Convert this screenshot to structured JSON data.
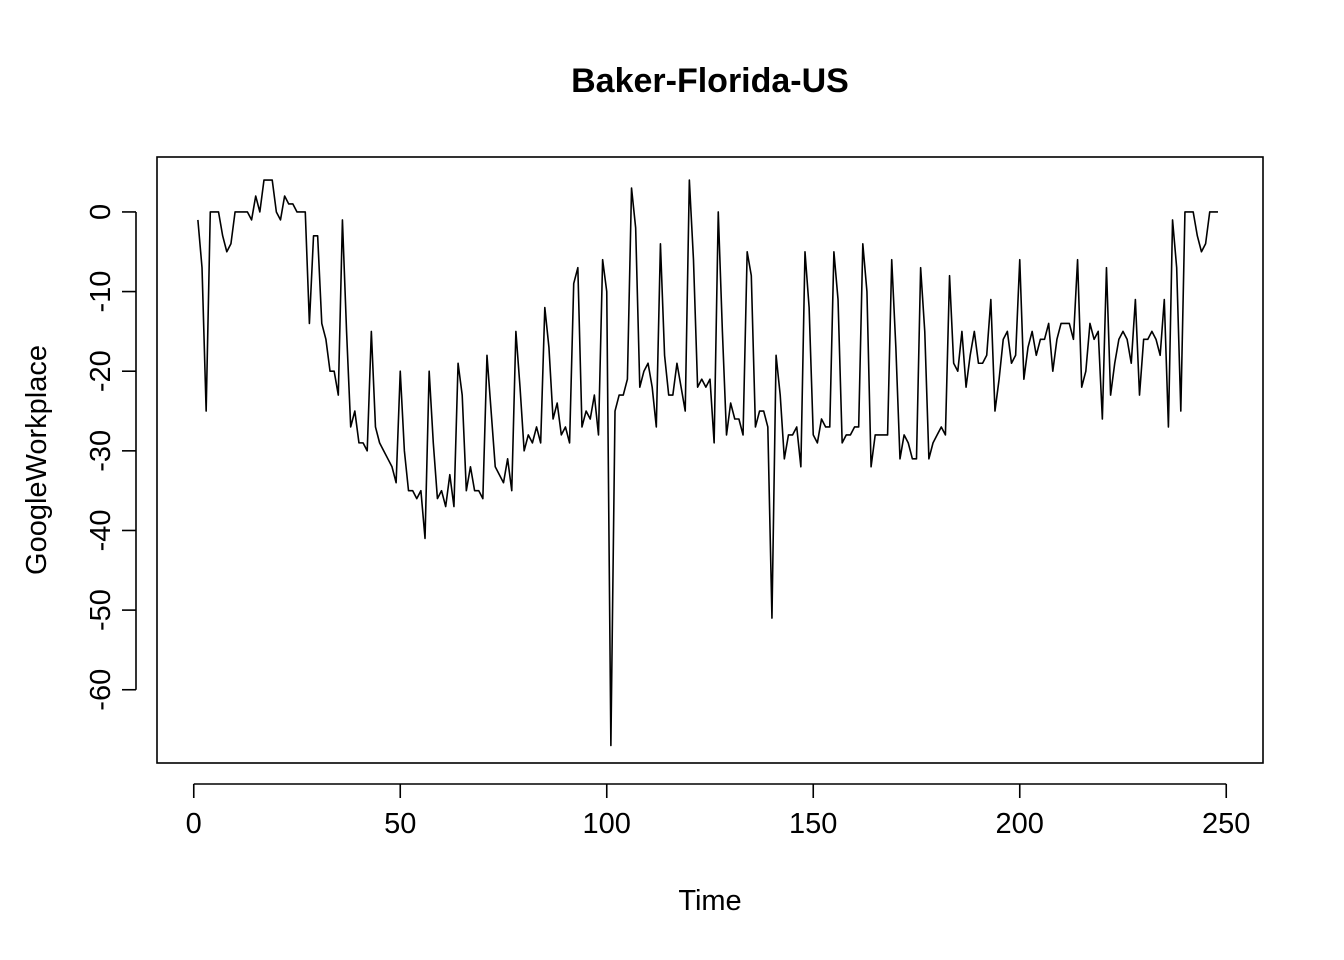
{
  "chart_data": {
    "type": "line",
    "title": "Baker-Florida-US",
    "xlabel": "Time",
    "ylabel": "GoogleWorkplace",
    "xlim": [
      -8.9,
      258.9
    ],
    "ylim": [
      -69.2,
      6.9
    ],
    "x_ticks": [
      0,
      50,
      100,
      150,
      200,
      250
    ],
    "y_ticks": [
      0,
      -10,
      -20,
      -30,
      -40,
      -50,
      -60
    ],
    "grid": false,
    "legend": "none",
    "line_color": "#000000",
    "series": [
      {
        "values": [
          -1,
          -7,
          -25,
          0,
          0,
          0,
          -3,
          -5,
          -4,
          0,
          0,
          0,
          0,
          -1,
          2,
          0,
          4,
          4,
          4,
          0,
          -1,
          2,
          1,
          1,
          0,
          0,
          0,
          -14,
          -3,
          -3,
          -14,
          -16,
          -20,
          -20,
          -23,
          -1,
          -15,
          -27,
          -25,
          -29,
          -29,
          -30,
          -15,
          -27,
          -29,
          -30,
          -31,
          -32,
          -34,
          -20,
          -30,
          -35,
          -35,
          -36,
          -35,
          -41,
          -20,
          -29,
          -36,
          -35,
          -37,
          -33,
          -37,
          -19,
          -23,
          -35,
          -32,
          -35,
          -35,
          -36,
          -18,
          -25,
          -32,
          -33,
          -34,
          -31,
          -35,
          -15,
          -22,
          -30,
          -28,
          -29,
          -27,
          -29,
          -12,
          -17,
          -26,
          -24,
          -28,
          -27,
          -29,
          -9,
          -7,
          -27,
          -25,
          -26,
          -23,
          -28,
          -6,
          -10,
          -67,
          -25,
          -23,
          -23,
          -21,
          3,
          -2,
          -22,
          -20,
          -19,
          -22,
          -27,
          -4,
          -18,
          -23,
          -23,
          -19,
          -22,
          -25,
          4,
          -6,
          -22,
          -21,
          -22,
          -21,
          -29,
          0,
          -15,
          -28,
          -24,
          -26,
          -26,
          -28,
          -5,
          -8,
          -27,
          -25,
          -25,
          -27,
          -51,
          -18,
          -23,
          -31,
          -28,
          -28,
          -27,
          -32,
          -5,
          -12,
          -28,
          -29,
          -26,
          -27,
          -27,
          -5,
          -11,
          -29,
          -28,
          -28,
          -27,
          -27,
          -4,
          -10,
          -32,
          -28,
          -28,
          -28,
          -28,
          -6,
          -17,
          -31,
          -28,
          -29,
          -31,
          -31,
          -7,
          -15,
          -31,
          -29,
          -28,
          -27,
          -28,
          -8,
          -19,
          -20,
          -15,
          -22,
          -18,
          -15,
          -19,
          -19,
          -18,
          -11,
          -25,
          -21,
          -16,
          -15,
          -19,
          -18,
          -6,
          -21,
          -17,
          -15,
          -18,
          -16,
          -16,
          -14,
          -20,
          -16,
          -14,
          -14,
          -14,
          -16,
          -6,
          -22,
          -20,
          -14,
          -16,
          -15,
          -26,
          -7,
          -23,
          -19,
          -16,
          -15,
          -16,
          -19,
          -11,
          -23,
          -16,
          -16,
          -15,
          -16,
          -18,
          -11,
          -27,
          -1,
          -7,
          -25,
          0,
          0,
          0,
          -3,
          -5,
          -4,
          0,
          0,
          0
        ]
      }
    ]
  }
}
